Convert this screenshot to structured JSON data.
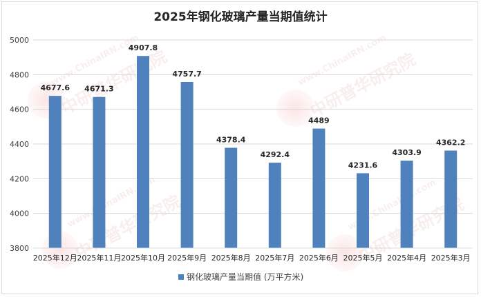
{
  "chart_data": {
    "type": "bar",
    "title": "2025年钢化玻璃产量当期值统计",
    "categories": [
      "2025年12月",
      "2025年11月",
      "2025年10月",
      "2025年9月",
      "2025年8月",
      "2025年7月",
      "2025年6月",
      "2025年5月",
      "2025年4月",
      "2025年3月"
    ],
    "series": [
      {
        "name": "钢化玻璃产量当期值 (万平方米)",
        "values": [
          4677.6,
          4671.3,
          4907.8,
          4757.7,
          4378.4,
          4292.4,
          4489,
          4231.6,
          4303.9,
          4362.2
        ],
        "labels": [
          "4677.6",
          "4671.3",
          "4907.8",
          "4757.7",
          "4378.4",
          "4292.4",
          "4489",
          "4231.6",
          "4303.9",
          "4362.2"
        ]
      }
    ],
    "ylim": [
      3800,
      5000
    ],
    "yticks": [
      3800,
      4000,
      4200,
      4400,
      4600,
      4800,
      5000
    ],
    "grid": true,
    "legend_position": "bottom",
    "bar_color": "#4f81bd"
  },
  "watermark": {
    "url_text": "www.ChinaIRN.com",
    "brand_text": "中研普华研究院",
    "logo_text": "CIRN"
  }
}
